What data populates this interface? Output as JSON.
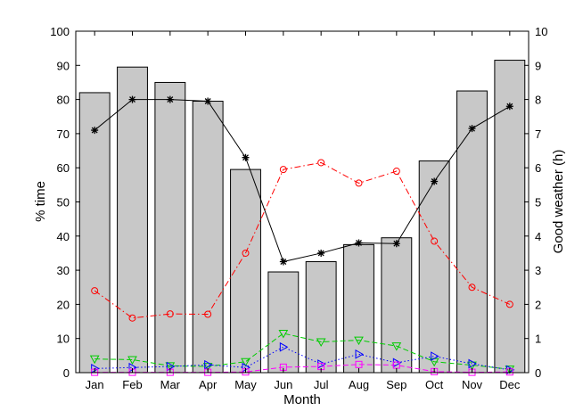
{
  "chart_data": {
    "type": "bar",
    "categories": [
      "Jan",
      "Feb",
      "Mar",
      "Apr",
      "May",
      "Jun",
      "Jul",
      "Aug",
      "Sep",
      "Oct",
      "Nov",
      "Dec"
    ],
    "xlabel": "Month",
    "ylabel": "% time",
    "ylabel_right": "Good weather (h)",
    "ylim": [
      0,
      100
    ],
    "ylim_right": [
      0,
      10
    ],
    "yticks": [
      0,
      10,
      20,
      30,
      40,
      50,
      60,
      70,
      80,
      90,
      100
    ],
    "yticks_right": [
      0,
      1,
      2,
      3,
      4,
      5,
      6,
      7,
      8,
      9,
      10
    ],
    "grid": false,
    "bars": {
      "axis": "left",
      "color": "#c8c8c8",
      "values": [
        82,
        89.5,
        85,
        79.5,
        59.5,
        29.5,
        32.5,
        37.5,
        39.5,
        62,
        82.5,
        91.5
      ]
    },
    "series": [
      {
        "axis": "right",
        "color": "#000000",
        "line": "solid",
        "marker": "star",
        "values": [
          7.1,
          8.0,
          8.0,
          7.95,
          6.3,
          3.25,
          3.5,
          3.8,
          3.78,
          5.6,
          7.15,
          7.8
        ]
      },
      {
        "axis": "left",
        "color": "#ff0000",
        "line": "dashdot",
        "marker": "circle",
        "values": [
          24,
          16,
          17.2,
          17.1,
          35,
          59.5,
          61.5,
          55.5,
          59,
          38.5,
          25,
          20
        ]
      },
      {
        "axis": "left",
        "color": "#00cc00",
        "line": "dashed",
        "marker": "triangle-down",
        "values": [
          4,
          3.8,
          2,
          1.8,
          3.2,
          11.5,
          9,
          9.5,
          7.8,
          3.2,
          2.2,
          1
        ]
      },
      {
        "axis": "left",
        "color": "#0000ff",
        "line": "dotted",
        "marker": "triangle-right",
        "values": [
          1.2,
          1.5,
          1.8,
          2.3,
          1.5,
          7.5,
          2.5,
          5.4,
          2.9,
          4.8,
          2.6,
          0.8
        ]
      },
      {
        "axis": "left",
        "color": "#ff00ff",
        "line": "dashed",
        "marker": "square",
        "values": [
          0.1,
          0.1,
          0.1,
          0.1,
          0.2,
          1.6,
          1.8,
          2.4,
          2.2,
          0.3,
          0.1,
          0.2
        ]
      }
    ]
  }
}
